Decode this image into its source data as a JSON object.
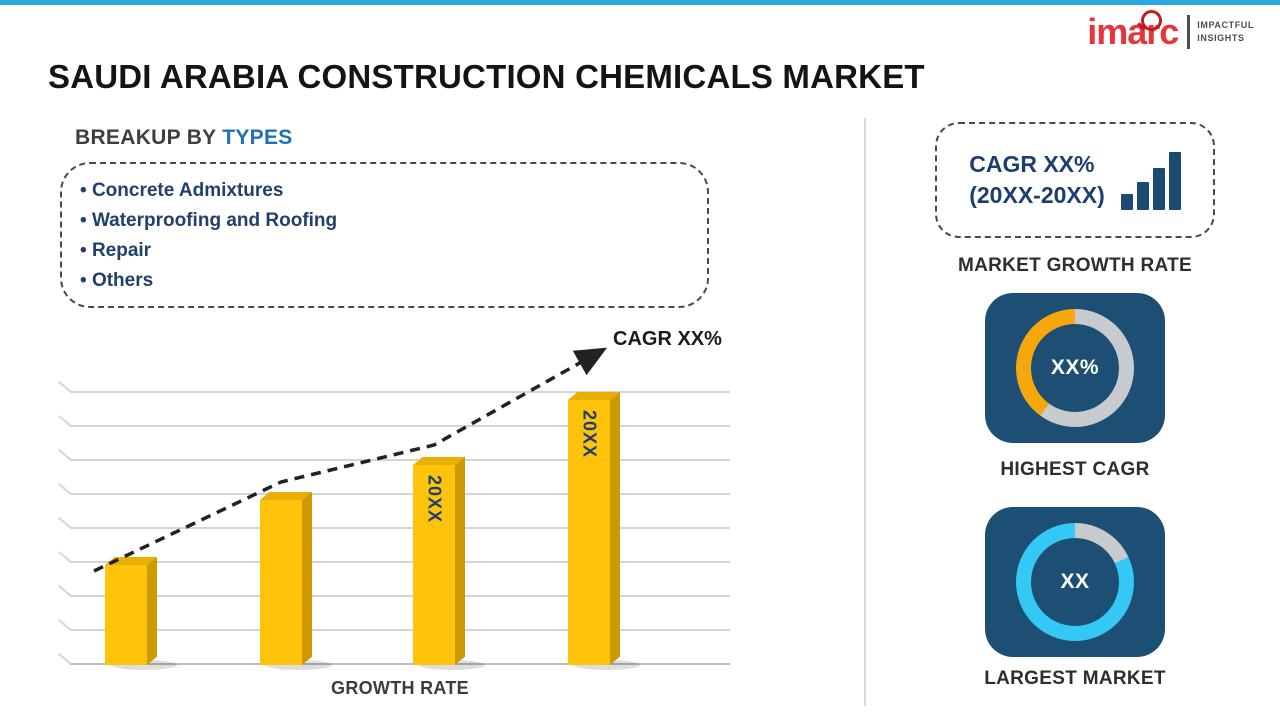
{
  "page": {
    "title": "SAUDI ARABIA CONSTRUCTION CHEMICALS MARKET"
  },
  "brand": {
    "wordmark": "imarc",
    "tagline_line1": "IMPACTFUL",
    "tagline_line2": "INSIGHTS"
  },
  "breakup": {
    "heading_prefix": "BREAKUP BY ",
    "heading_highlight": "TYPES",
    "items": [
      "Concrete Admixtures",
      "Waterproofing and Roofing",
      "Repair",
      "Others"
    ]
  },
  "chart_data": [
    {
      "type": "bar",
      "title": "",
      "categories": [
        "",
        "",
        "20XX",
        "20XX"
      ],
      "values": [
        37,
        61,
        74,
        98
      ],
      "ylim": [
        0,
        100
      ],
      "grid": true,
      "bar_color": "#FFC30B",
      "trend_label": "CAGR XX%",
      "xlabel": "GROWTH RATE"
    },
    {
      "type": "pie",
      "variant": "donut",
      "center_label": "XX%",
      "caption": "HIGHEST CAGR",
      "segments": [
        {
          "name": "remainder",
          "color": "#C7CBCD",
          "pct": 60
        },
        {
          "name": "highest-cagr",
          "color": "#F5A70B",
          "pct": 40
        }
      ]
    },
    {
      "type": "pie",
      "variant": "donut",
      "center_label": "XX",
      "caption": "LARGEST MARKET",
      "segments": [
        {
          "name": "remainder",
          "color": "#C7CBCD",
          "pct": 18
        },
        {
          "name": "largest-market",
          "color": "#35C8F4",
          "pct": 82
        }
      ]
    }
  ],
  "sidebar": {
    "growth_box_line1": "CAGR XX%",
    "growth_box_line2": "(20XX-20XX)",
    "market_growth_label": "MARKET GROWTH RATE"
  },
  "colors": {
    "accent_bar": "#29A8DF",
    "bar_fill": "#FFC30B",
    "card_bg": "#1D4E74",
    "heading_highlight": "#1D71B8",
    "navy_text": "#1D3F6E",
    "brand_red": "#E8353C",
    "donut_orange": "#F5A70B",
    "donut_cyan": "#35C8F4"
  }
}
